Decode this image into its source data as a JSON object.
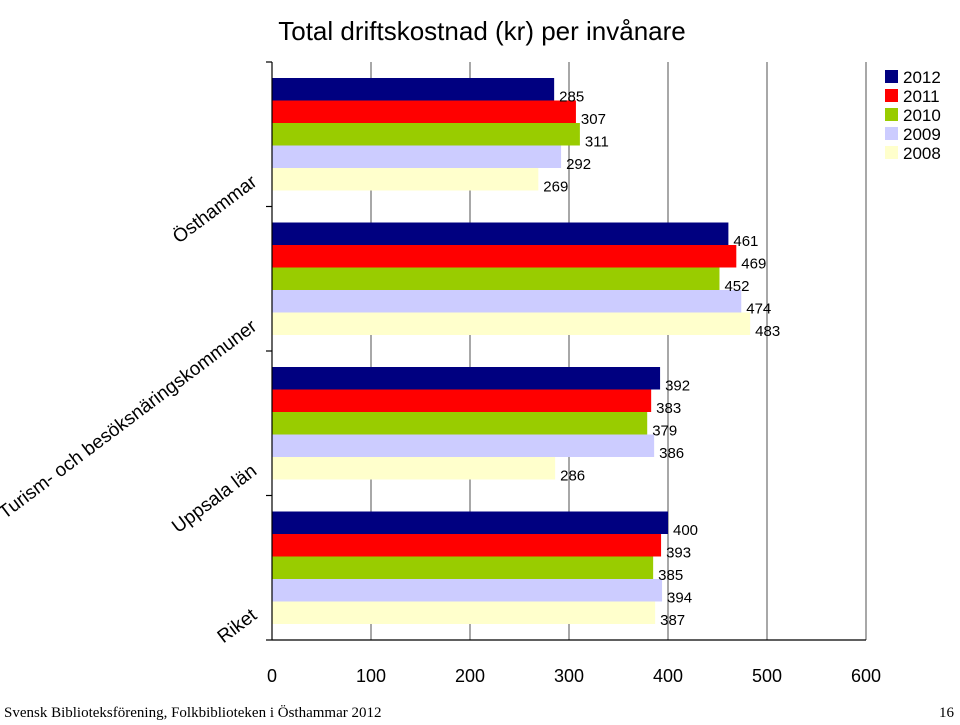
{
  "chart_data": {
    "type": "bar",
    "orientation": "horizontal",
    "title": "Total driftskostnad (kr) per invånare",
    "xlabel": "",
    "ylabel": "",
    "xlim": [
      0,
      600
    ],
    "xticks": [
      "0",
      "100",
      "200",
      "300",
      "400",
      "500",
      "600"
    ],
    "grid": "vertical",
    "legend_position": "top-right",
    "categories": [
      "Östhammar",
      "Turism- och besöksnäringskommuner",
      "Uppsala län",
      "Riket"
    ],
    "series": [
      {
        "name": "2012",
        "color": "#000080",
        "values": [
          285,
          461,
          392,
          400
        ]
      },
      {
        "name": "2011",
        "color": "#ff0000",
        "values": [
          307,
          469,
          383,
          393
        ]
      },
      {
        "name": "2010",
        "color": "#99cc00",
        "values": [
          311,
          452,
          379,
          385
        ]
      },
      {
        "name": "2009",
        "color": "#ccccff",
        "values": [
          292,
          474,
          386,
          394
        ]
      },
      {
        "name": "2008",
        "color": "#ffffcc",
        "values": [
          269,
          483,
          286,
          387
        ]
      }
    ]
  },
  "footer": {
    "text": "Svensk Biblioteksförening, Folkbiblioteken i Östhammar 2012",
    "page": "16"
  }
}
